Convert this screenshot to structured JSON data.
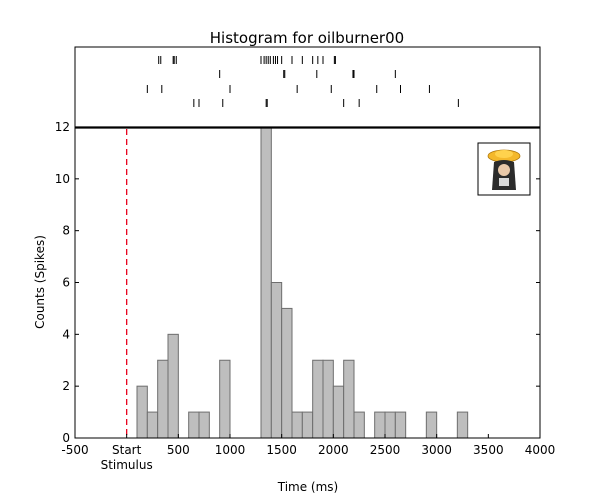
{
  "chart_data": {
    "type": "bar",
    "title": "Histogram for oilburner00",
    "xlabel": "Time (ms)",
    "ylabel": "Counts (Spikes)",
    "xlim": [
      -500,
      4000
    ],
    "ylim": [
      0,
      12
    ],
    "x_ticks": [
      -500,
      0,
      500,
      1000,
      1500,
      2000,
      2500,
      3000,
      3500,
      4000
    ],
    "x_tick_labels": [
      "-500",
      "Start",
      "500",
      "1000",
      "1500",
      "2000",
      "2500",
      "3000",
      "3500",
      "4000"
    ],
    "x_tick_sublabel": "Stimulus",
    "y_ticks": [
      0,
      2,
      4,
      6,
      8,
      10,
      12
    ],
    "y_tick_labels": [
      "0",
      "2",
      "4",
      "6",
      "8",
      "10",
      "12"
    ],
    "stimulus_marker_x": 0,
    "bin_width": 100,
    "bins": [
      {
        "x": 100,
        "count": 2
      },
      {
        "x": 200,
        "count": 1
      },
      {
        "x": 300,
        "count": 3
      },
      {
        "x": 400,
        "count": 4
      },
      {
        "x": 600,
        "count": 1
      },
      {
        "x": 700,
        "count": 1
      },
      {
        "x": 900,
        "count": 3
      },
      {
        "x": 1300,
        "count": 12
      },
      {
        "x": 1400,
        "count": 6
      },
      {
        "x": 1500,
        "count": 5
      },
      {
        "x": 1600,
        "count": 1
      },
      {
        "x": 1700,
        "count": 1
      },
      {
        "x": 1800,
        "count": 3
      },
      {
        "x": 1900,
        "count": 3
      },
      {
        "x": 2000,
        "count": 2
      },
      {
        "x": 2100,
        "count": 3
      },
      {
        "x": 2200,
        "count": 1
      },
      {
        "x": 2400,
        "count": 1
      },
      {
        "x": 2500,
        "count": 1
      },
      {
        "x": 2600,
        "count": 1
      },
      {
        "x": 2900,
        "count": 1
      },
      {
        "x": 3200,
        "count": 1
      }
    ],
    "raster_trials": [
      [
        310,
        330,
        450,
        460,
        480,
        1300,
        1330,
        1350,
        1370,
        1390,
        1420,
        1440,
        1460,
        1500,
        1600,
        1700,
        1800,
        1850,
        1900,
        2010,
        2020
      ],
      [
        900,
        1520,
        1530,
        1840,
        2190,
        2200,
        2600
      ],
      [
        200,
        340,
        1000,
        1650,
        1980,
        2420,
        2650,
        2930
      ],
      [
        650,
        700,
        930,
        1350,
        1360,
        2100,
        2250,
        3210
      ]
    ],
    "colors": {
      "bar_fill": "#bebebe",
      "bar_edge": "#6e6e6e",
      "stimulus_line": "#e8001c",
      "axes": "#000000"
    },
    "inset_icon": "figure-with-yellow-hat-icon",
    "grid": false,
    "legend": "none"
  }
}
